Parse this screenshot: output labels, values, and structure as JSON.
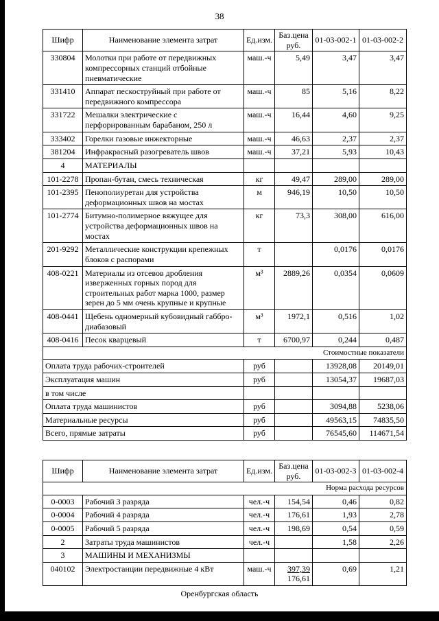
{
  "page": {
    "number": "38",
    "footer": "Оренбургская область"
  },
  "tables": [
    {
      "name": "cost-table-01-03-002-1-2",
      "headers": [
        "Шифр",
        "Наименование элемента затрат",
        "Ед.изм.",
        "Баз.цена\nруб.",
        "01-03-002-1",
        "01-03-002-2"
      ],
      "rows": [
        {
          "t": "item",
          "code": "330804",
          "name": "Молотки при работе от передвижных компрессорных станций отбойные пневматические",
          "unit": "маш.-ч",
          "base": "5,49",
          "v1": "3,47",
          "v2": "3,47"
        },
        {
          "t": "item",
          "code": "331410",
          "name": "Аппарат пескоструйный при работе от передвижного компрессора",
          "unit": "маш.-ч",
          "base": "85",
          "v1": "5,16",
          "v2": "8,22"
        },
        {
          "t": "item",
          "code": "331722",
          "name": "Мешалки электрические с перфорированным барабаном, 250 л",
          "unit": "маш.-ч",
          "base": "16,44",
          "v1": "4,60",
          "v2": "9,25"
        },
        {
          "t": "item",
          "code": "333402",
          "name": "Горелки газовые инжекторные",
          "unit": "маш.-ч",
          "base": "46,63",
          "v1": "2,37",
          "v2": "2,37"
        },
        {
          "t": "item",
          "code": "381204",
          "name": "Инфракрасный разогреватель швов",
          "unit": "маш.-ч",
          "base": "37,21",
          "v1": "5,93",
          "v2": "10,43"
        },
        {
          "t": "section",
          "code": "4",
          "name": "МАТЕРИАЛЫ"
        },
        {
          "t": "item",
          "code": "101-2278",
          "name": "Пропан-бутан, смесь техническая",
          "unit": "кг",
          "base": "49,47",
          "v1": "289,00",
          "v2": "289,00"
        },
        {
          "t": "item",
          "code": "101-2395",
          "name": "Пенополиуретан для устройства деформационных швов на мостах",
          "unit": "м",
          "base": "946,19",
          "v1": "10,50",
          "v2": "10,50"
        },
        {
          "t": "item",
          "code": "101-2774",
          "name": "Битумно-полимерное вяжущее для устройства деформационных швов на мостах",
          "unit": "кг",
          "base": "73,3",
          "v1": "308,00",
          "v2": "616,00"
        },
        {
          "t": "item",
          "code": "201-9292",
          "name": "Металлические конструкции крепежных блоков с распорами",
          "unit": "т",
          "base": "",
          "v1": "0,0176",
          "v2": "0,0176"
        },
        {
          "t": "item",
          "code": "408-0221",
          "name": "Материалы из отсевов дробления изверженных горных пород для строительных работ марка 1000, размер зерен до 5 мм очень крупные и крупные",
          "unit": "м³",
          "base": "2889,26",
          "v1": "0,0354",
          "v2": "0,0609"
        },
        {
          "t": "item",
          "code": "408-0441",
          "name": "Щебень одномерный кубовидный габбро-диабазовый",
          "unit": "м³",
          "base": "1972,1",
          "v1": "0,516",
          "v2": "1,02"
        },
        {
          "t": "item",
          "code": "408-0416",
          "name": "Песок кварцевый",
          "unit": "т",
          "base": "6700,97",
          "v1": "0,244",
          "v2": "0,487"
        },
        {
          "t": "label",
          "name": "Стоимостные показатели"
        },
        {
          "t": "sum",
          "bold": true,
          "name": "Оплата труда рабочих-строителей",
          "unit": "руб",
          "v1": "13928,08",
          "v2": "20149,01"
        },
        {
          "t": "sum",
          "bold": true,
          "name": "Эксплуатация машин",
          "unit": "руб",
          "v1": "13054,37",
          "v2": "19687,03"
        },
        {
          "t": "sum",
          "bold": false,
          "name": "в том числе",
          "unit": "",
          "v1": "",
          "v2": ""
        },
        {
          "t": "sum",
          "bold": false,
          "name": "Оплата труда машинистов",
          "unit": "руб",
          "v1": "3094,88",
          "v2": "5238,06"
        },
        {
          "t": "sum",
          "bold": true,
          "name": "Материальные ресурсы",
          "unit": "руб",
          "v1": "49563,15",
          "v2": "74835,50"
        },
        {
          "t": "sum",
          "bold": true,
          "name": "Всего, прямые затраты",
          "unit": "руб",
          "v1": "76545,60",
          "v2": "114671,54"
        }
      ]
    },
    {
      "name": "cost-table-01-03-002-3-4",
      "headers": [
        "Шифр",
        "Наименование элемента затрат",
        "Ед.изм.",
        "Баз.цена\nруб.",
        "01-03-002-3",
        "01-03-002-4"
      ],
      "rows": [
        {
          "t": "label",
          "name": "Норма расхода ресурсов"
        },
        {
          "t": "item",
          "code": "0-0003",
          "name": "Рабочий 3 разряда",
          "unit": "чел.-ч",
          "base": "154,54",
          "v1": "0,46",
          "v2": "0,82"
        },
        {
          "t": "item",
          "code": "0-0004",
          "name": "Рабочий 4 разряда",
          "unit": "чел.-ч",
          "base": "176,61",
          "v1": "1,93",
          "v2": "2,78"
        },
        {
          "t": "item",
          "code": "0-0005",
          "name": "Рабочий 5 разряда",
          "unit": "чел.-ч",
          "base": "198,69",
          "v1": "0,54",
          "v2": "0,59"
        },
        {
          "t": "section",
          "code": "2",
          "name": "Затраты труда машинистов",
          "unit": "чел.-ч",
          "v1": "1,58",
          "v2": "2,26"
        },
        {
          "t": "section",
          "code": "3",
          "name": "МАШИНЫ И МЕХАНИЗМЫ"
        },
        {
          "t": "item",
          "code": "040102",
          "name": "Электростанции передвижные 4 кВт",
          "unit": "маш.-ч",
          "base": "397,39",
          "base2": "176,61",
          "v1": "0,69",
          "v2": "1,21"
        }
      ]
    }
  ]
}
